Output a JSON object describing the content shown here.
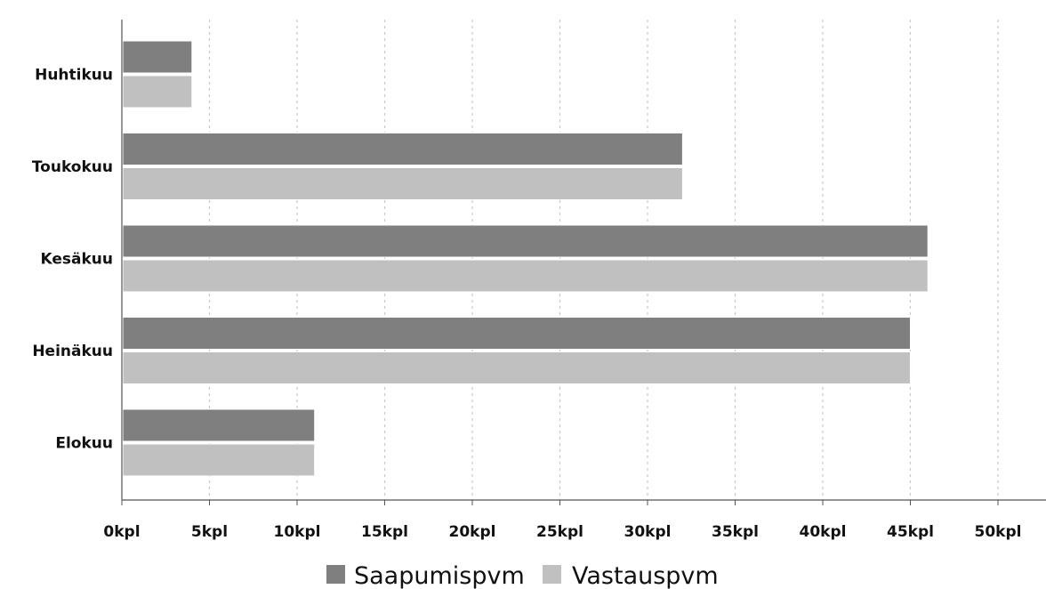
{
  "chart_data": {
    "type": "bar",
    "orientation": "horizontal",
    "categories": [
      "Huhtikuu",
      "Toukokuu",
      "Kesäkuu",
      "Heinäkuu",
      "Elokuu"
    ],
    "series": [
      {
        "name": "Saapumispvm",
        "values": [
          4,
          32,
          46,
          45,
          11
        ],
        "color": "#7f7f7f"
      },
      {
        "name": "Vastauspvm",
        "values": [
          4,
          32,
          46,
          45,
          11
        ],
        "color": "#c0c0c0"
      }
    ],
    "x_ticks": [
      "0kpl",
      "5kpl",
      "10kpl",
      "15kpl",
      "20kpl",
      "25kpl",
      "30kpl",
      "35kpl",
      "40kpl",
      "45kpl",
      "50kpl"
    ],
    "xlim": [
      0,
      52
    ],
    "grid": true,
    "legend_position": "bottom"
  }
}
